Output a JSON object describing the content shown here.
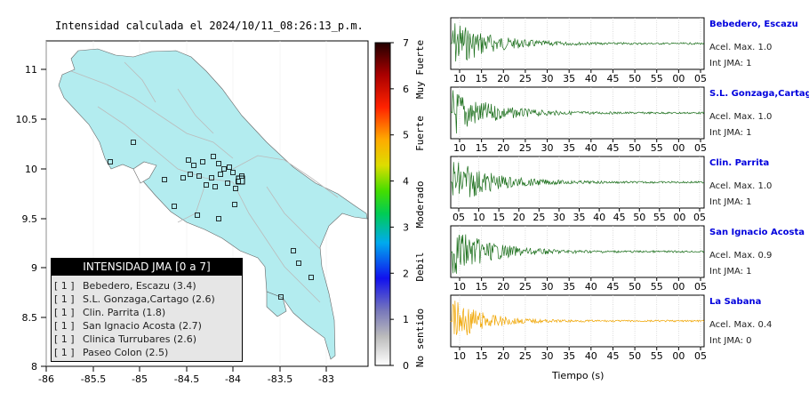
{
  "map": {
    "title": "Intensidad calculada el 2024/10/11_08:26:13_p.m.",
    "x_ticks": [
      "-86",
      "-85.5",
      "-85",
      "-84.5",
      "-84",
      "-83.5",
      "-83"
    ],
    "y_ticks": [
      "11",
      "10.5",
      "10",
      "9.5",
      "9",
      "8.5",
      "8"
    ],
    "land_color": "#b3ecef"
  },
  "colorbar": {
    "ticks": [
      "0",
      "1",
      "2",
      "3",
      "4",
      "5",
      "6",
      "7"
    ],
    "labels": [
      "No sentido",
      "Debil",
      "Moderado",
      "Fuerte",
      "Muy Fuerte"
    ]
  },
  "legend": {
    "title": "INTENSIDAD JMA [0 a 7]",
    "rows": [
      {
        "prefix": "[ 1 ]",
        "text": "Bebedero, Escazu (3.4)"
      },
      {
        "prefix": "[ 1 ]",
        "text": "S.L. Gonzaga,Cartago (2.6)"
      },
      {
        "prefix": "[ 1 ]",
        "text": "Clin. Parrita (1.8)"
      },
      {
        "prefix": "[ 1 ]",
        "text": "San Ignacio Acosta (2.7)"
      },
      {
        "prefix": "[ 1 ]",
        "text": "Clinica Turrubares (2.6)"
      },
      {
        "prefix": "[ 1 ]",
        "text": "Paseo Colon (2.5)"
      }
    ]
  },
  "stations": [
    {
      "name": "Bebedero, Escazu",
      "acel": "Acel. Max. 1.0",
      "jma": "Int JMA: 1",
      "color": "#1a6e1a",
      "ticks": [
        "10",
        "15",
        "20",
        "25",
        "30",
        "35",
        "40",
        "45",
        "50",
        "55",
        "00",
        "05"
      ]
    },
    {
      "name": "S.L. Gonzaga,Cartago",
      "acel": "Acel. Max. 1.0",
      "jma": "Int JMA: 1",
      "color": "#1a6e1a",
      "ticks": [
        "10",
        "15",
        "20",
        "25",
        "30",
        "35",
        "40",
        "45",
        "50",
        "55",
        "00",
        "05"
      ]
    },
    {
      "name": "Clin. Parrita",
      "acel": "Acel. Max. 1.0",
      "jma": "Int JMA: 1",
      "color": "#1a6e1a",
      "ticks": [
        "05",
        "10",
        "15",
        "20",
        "25",
        "30",
        "35",
        "40",
        "45",
        "50",
        "55",
        "00",
        "05"
      ]
    },
    {
      "name": "San Ignacio Acosta",
      "acel": "Acel. Max. 0.9",
      "jma": "Int JMA: 1",
      "color": "#1a6e1a",
      "ticks": [
        "10",
        "15",
        "20",
        "25",
        "30",
        "35",
        "40",
        "45",
        "50",
        "55",
        "00",
        "05"
      ]
    },
    {
      "name": "La Sabana",
      "acel": "Acel. Max. 0.4",
      "jma": "Int JMA: 0",
      "color": "#f0a500",
      "ticks": [
        "10",
        "15",
        "20",
        "25",
        "30",
        "35",
        "40",
        "45",
        "50",
        "55",
        "00",
        "05"
      ]
    }
  ],
  "waves_xlabel": "Tiempo (s)"
}
